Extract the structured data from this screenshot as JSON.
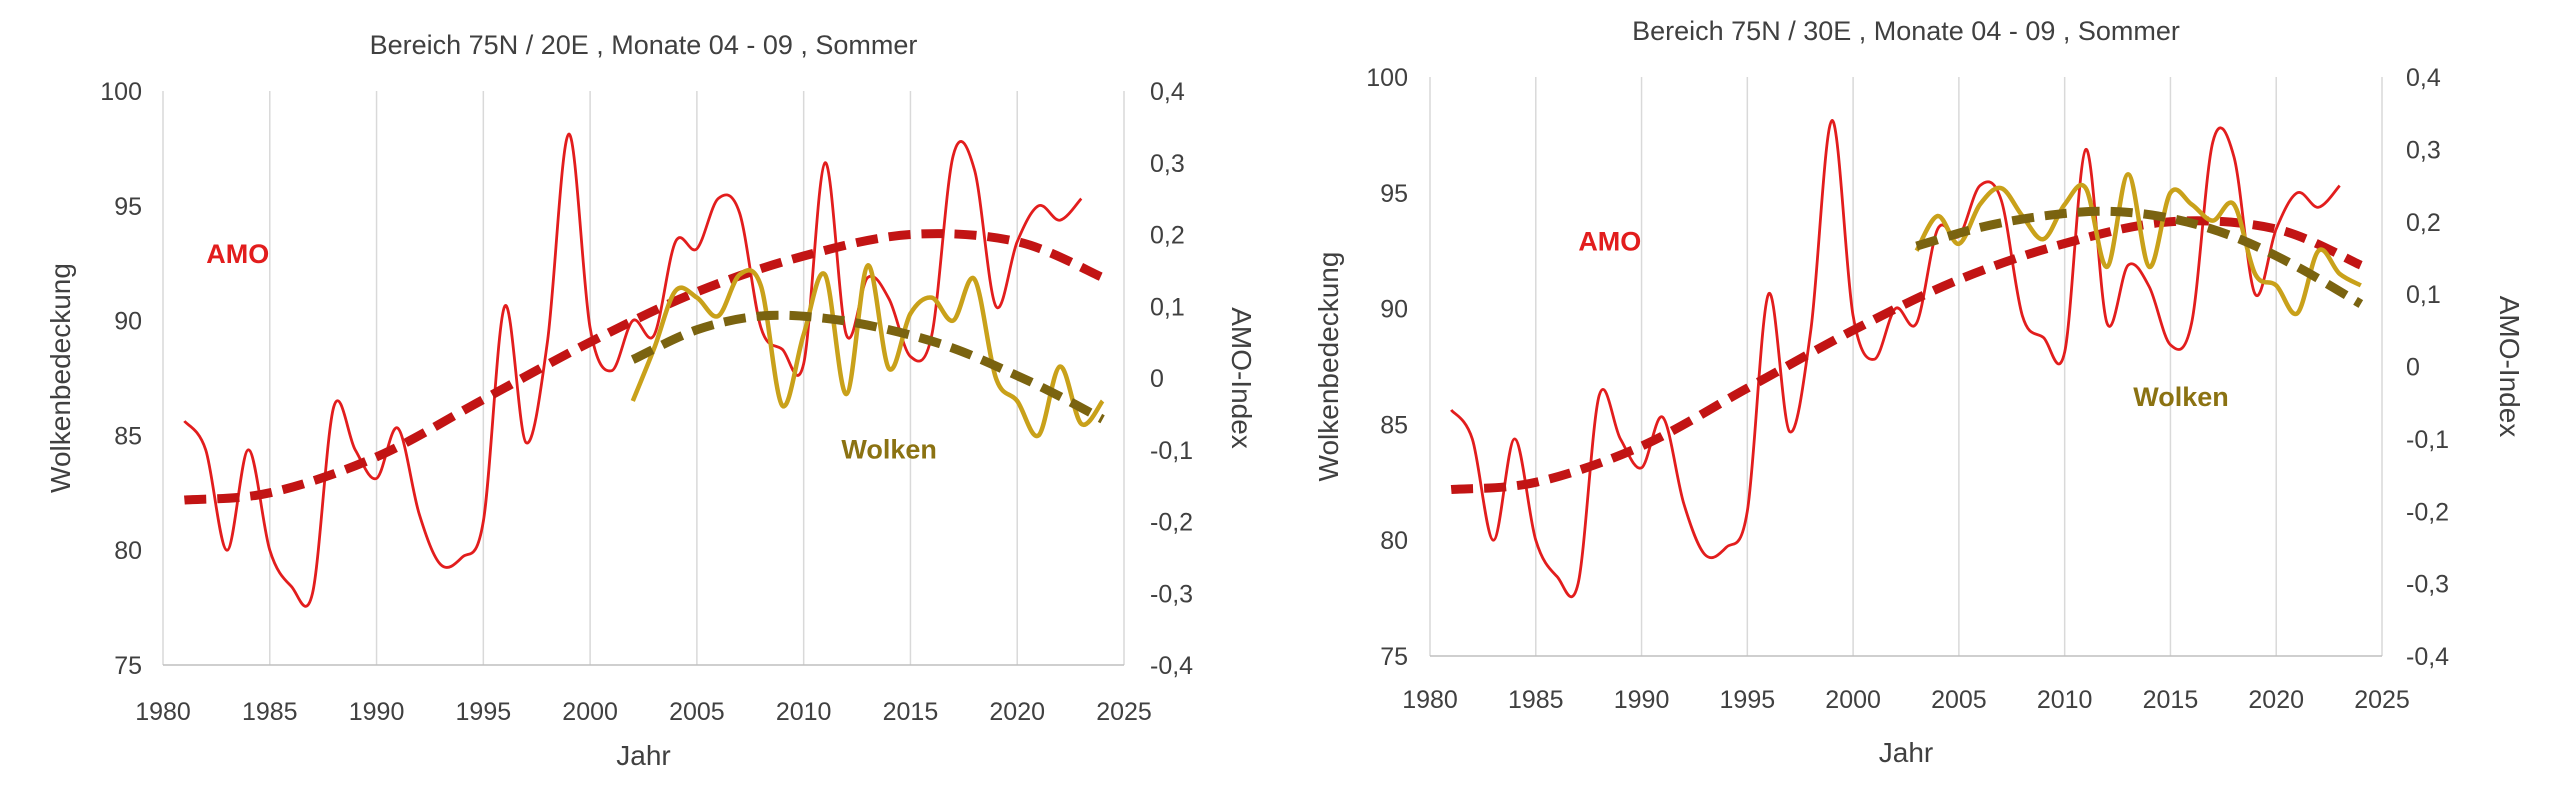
{
  "chart_data": [
    {
      "type": "line",
      "title": "Bereich 75N / 20E , Monate 04 - 09 , Sommer",
      "xlabel": "Jahr",
      "ylabel": "Wolkenbedeckung",
      "y2label": "AMO-Index",
      "xlim": [
        1980,
        2025
      ],
      "ylim": [
        75,
        100
      ],
      "y2lim": [
        -0.4,
        0.4
      ],
      "xticks": [
        "1980",
        "1985",
        "1990",
        "1995",
        "2000",
        "2005",
        "2010",
        "2015",
        "2020",
        "2025"
      ],
      "yticks": [
        "75",
        "80",
        "85",
        "90",
        "95",
        "100"
      ],
      "y2ticks": [
        "-0,4",
        "-0,3",
        "-0,2",
        "-0,1",
        "0",
        "0,1",
        "0,2",
        "0,3",
        "0,4"
      ],
      "grid": "vertical",
      "annotations": [
        {
          "text": "AMO",
          "color": "#e21d1d",
          "x": 1983.5,
          "y": 92.5
        },
        {
          "text": "Wolken",
          "color": "#8b7212",
          "x": 2014,
          "y": 84.0
        }
      ],
      "series": [
        {
          "name": "AMO",
          "axis": "right",
          "style": "thin",
          "color": "#e21d1d",
          "x": [
            1981,
            1982,
            1983,
            1984,
            1985,
            1986,
            1987,
            1988,
            1989,
            1990,
            1991,
            1992,
            1993,
            1994,
            1995,
            1996,
            1997,
            1998,
            1999,
            2000,
            2001,
            2002,
            2003,
            2004,
            2005,
            2006,
            2007,
            2008,
            2009,
            2010,
            2011,
            2012,
            2013,
            2014,
            2015,
            2016,
            2017,
            2018,
            2019,
            2020,
            2021,
            2022,
            2023
          ],
          "y": [
            -0.06,
            -0.1,
            -0.24,
            -0.1,
            -0.24,
            -0.29,
            -0.3,
            -0.04,
            -0.1,
            -0.14,
            -0.07,
            -0.19,
            -0.26,
            -0.25,
            -0.2,
            0.1,
            -0.09,
            0.05,
            0.34,
            0.07,
            0.01,
            0.08,
            0.06,
            0.19,
            0.18,
            0.25,
            0.23,
            0.07,
            0.04,
            0.02,
            0.3,
            0.06,
            0.14,
            0.11,
            0.03,
            0.06,
            0.31,
            0.29,
            0.1,
            0.19,
            0.24,
            0.22,
            0.25
          ]
        },
        {
          "name": "",
          "axis": "right",
          "style": "dashed",
          "color": "#c21414",
          "x": [
            1981,
            1985,
            1990,
            1995,
            2000,
            2005,
            2010,
            2015,
            2020,
            2024
          ],
          "y": [
            -0.17,
            -0.16,
            -0.11,
            -0.03,
            0.05,
            0.12,
            0.17,
            0.2,
            0.19,
            0.14
          ]
        },
        {
          "name": "Wolken",
          "axis": "left",
          "style": "thin",
          "color": "#c9a11a",
          "x": [
            2002,
            2003,
            2004,
            2005,
            2006,
            2007,
            2008,
            2009,
            2010,
            2011,
            2012,
            2013,
            2014,
            2015,
            2016,
            2017,
            2018,
            2019,
            2020,
            2021,
            2022,
            2023,
            2024
          ],
          "y": [
            86.5,
            88.8,
            91.3,
            91.0,
            90.2,
            92.0,
            91.5,
            86.3,
            89.4,
            92.0,
            86.8,
            92.4,
            87.9,
            90.3,
            91.0,
            90.0,
            91.8,
            87.5,
            86.5,
            85.0,
            88.0,
            85.5,
            86.5
          ]
        },
        {
          "name": "",
          "axis": "left",
          "style": "dashed",
          "color": "#7a6310",
          "x": [
            2002,
            2005,
            2008,
            2011,
            2014,
            2017,
            2020,
            2022,
            2024
          ],
          "y": [
            88.3,
            89.6,
            90.2,
            90.1,
            89.6,
            88.8,
            87.6,
            86.7,
            85.7
          ]
        }
      ]
    },
    {
      "type": "line",
      "title": "Bereich 75N / 30E , Monate 04 - 09 , Sommer",
      "xlabel": "Jahr",
      "ylabel": "Wolkenbedeckung",
      "y2label": "AMO-Index",
      "xlim": [
        1980,
        2025
      ],
      "ylim": [
        75,
        100
      ],
      "y2lim": [
        -0.4,
        0.4
      ],
      "xticks": [
        "1980",
        "1985",
        "1990",
        "1995",
        "2000",
        "2005",
        "2010",
        "2015",
        "2020",
        "2025"
      ],
      "yticks": [
        "75",
        "80",
        "85",
        "90",
        "95",
        "100"
      ],
      "y2ticks": [
        "-0,4",
        "-0,3",
        "-0,2",
        "-0,1",
        "0",
        "0,1",
        "0,2",
        "0,3",
        "0,4"
      ],
      "grid": "vertical",
      "annotations": [
        {
          "text": "AMO",
          "color": "#e21d1d",
          "x": 1988.5,
          "y": 92.5
        },
        {
          "text": "Wolken",
          "color": "#8b7212",
          "x": 2015.5,
          "y": 85.8
        }
      ],
      "series": [
        {
          "name": "AMO",
          "axis": "right",
          "style": "thin",
          "color": "#e21d1d",
          "x": [
            1981,
            1982,
            1983,
            1984,
            1985,
            1986,
            1987,
            1988,
            1989,
            1990,
            1991,
            1992,
            1993,
            1994,
            1995,
            1996,
            1997,
            1998,
            1999,
            2000,
            2001,
            2002,
            2003,
            2004,
            2005,
            2006,
            2007,
            2008,
            2009,
            2010,
            2011,
            2012,
            2013,
            2014,
            2015,
            2016,
            2017,
            2018,
            2019,
            2020,
            2021,
            2022,
            2023
          ],
          "y": [
            -0.06,
            -0.1,
            -0.24,
            -0.1,
            -0.24,
            -0.29,
            -0.3,
            -0.04,
            -0.1,
            -0.14,
            -0.07,
            -0.19,
            -0.26,
            -0.25,
            -0.2,
            0.1,
            -0.09,
            0.05,
            0.34,
            0.07,
            0.01,
            0.08,
            0.06,
            0.19,
            0.18,
            0.25,
            0.23,
            0.07,
            0.04,
            0.02,
            0.3,
            0.06,
            0.14,
            0.11,
            0.03,
            0.06,
            0.31,
            0.29,
            0.1,
            0.19,
            0.24,
            0.22,
            0.25
          ]
        },
        {
          "name": "",
          "axis": "right",
          "style": "dashed",
          "color": "#c21414",
          "x": [
            1981,
            1985,
            1990,
            1995,
            2000,
            2005,
            2010,
            2015,
            2020,
            2024
          ],
          "y": [
            -0.17,
            -0.16,
            -0.11,
            -0.03,
            0.05,
            0.12,
            0.17,
            0.2,
            0.19,
            0.14
          ]
        },
        {
          "name": "Wolken",
          "axis": "left",
          "style": "thin",
          "color": "#c9a11a",
          "x": [
            2003,
            2004,
            2005,
            2006,
            2007,
            2008,
            2009,
            2010,
            2011,
            2012,
            2013,
            2014,
            2015,
            2016,
            2017,
            2018,
            2019,
            2020,
            2021,
            2022,
            2023,
            2024
          ],
          "y": [
            92.5,
            94.0,
            92.8,
            94.5,
            95.2,
            94.0,
            93.0,
            94.5,
            95.2,
            91.8,
            95.8,
            91.8,
            95.0,
            94.5,
            93.8,
            94.5,
            91.5,
            91.0,
            89.8,
            92.5,
            91.5,
            91.0
          ]
        },
        {
          "name": "",
          "axis": "left",
          "style": "dashed",
          "color": "#7a6310",
          "x": [
            2003,
            2006,
            2009,
            2012,
            2015,
            2018,
            2021,
            2024
          ],
          "y": [
            92.7,
            93.5,
            94.0,
            94.2,
            93.9,
            93.1,
            91.8,
            90.2
          ]
        }
      ]
    }
  ]
}
